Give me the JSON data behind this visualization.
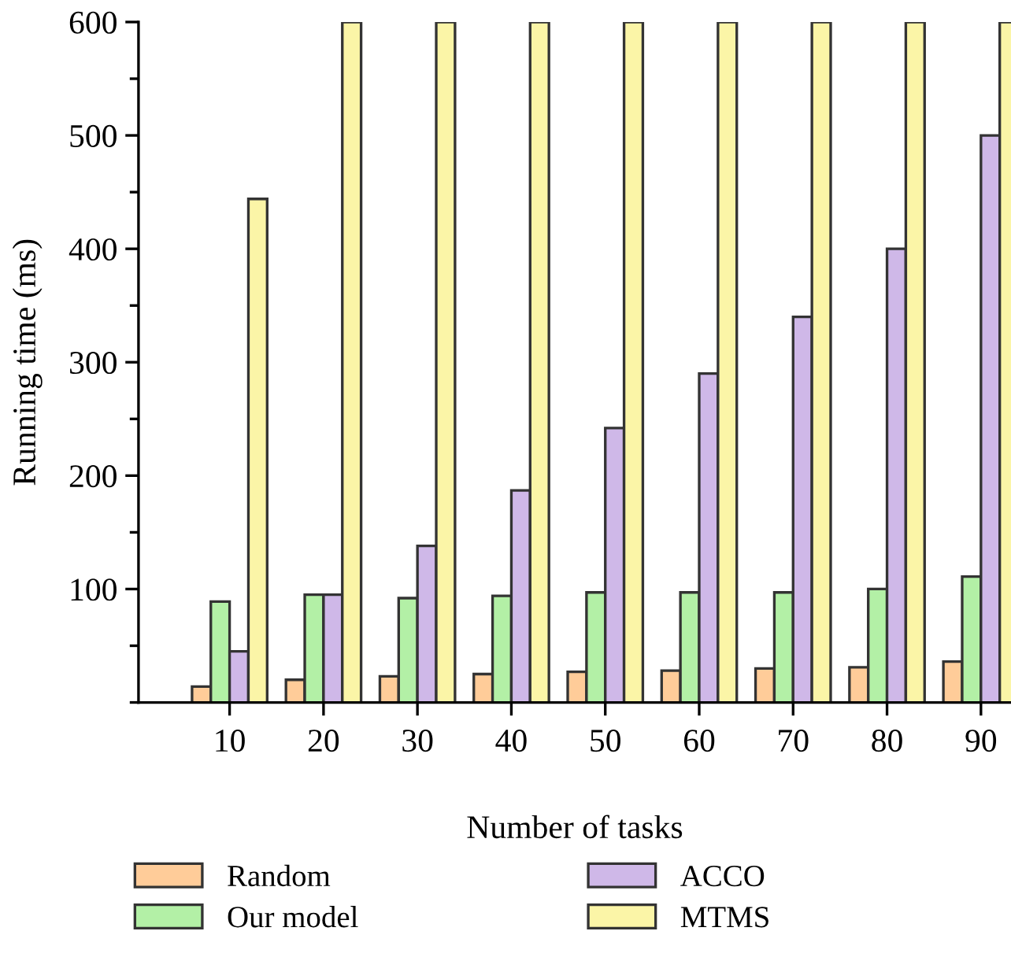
{
  "chart_data": {
    "type": "bar",
    "xlabel": "Number of tasks",
    "ylabel": "Running time (ms)",
    "categories": [
      "10",
      "20",
      "30",
      "40",
      "50",
      "60",
      "70",
      "80",
      "90"
    ],
    "series": [
      {
        "name": "Random",
        "color": "#ffcc99",
        "values": [
          14,
          20,
          23,
          25,
          27,
          28,
          30,
          31,
          36
        ]
      },
      {
        "name": "Our model",
        "color": "#b3f0a6",
        "values": [
          89,
          95,
          92,
          94,
          97,
          97,
          97,
          100,
          111
        ]
      },
      {
        "name": "ACCO",
        "color": "#cfb8e8",
        "values": [
          45,
          95,
          138,
          187,
          242,
          290,
          340,
          400,
          500
        ]
      },
      {
        "name": "MTMS",
        "color": "#fbf5a7",
        "values": [
          444,
          600,
          600,
          600,
          600,
          600,
          600,
          600,
          600
        ]
      }
    ],
    "ylim": [
      0,
      600
    ],
    "yticks": [
      100,
      200,
      300,
      400,
      500,
      600
    ],
    "grid": false,
    "legend": "bottom"
  }
}
